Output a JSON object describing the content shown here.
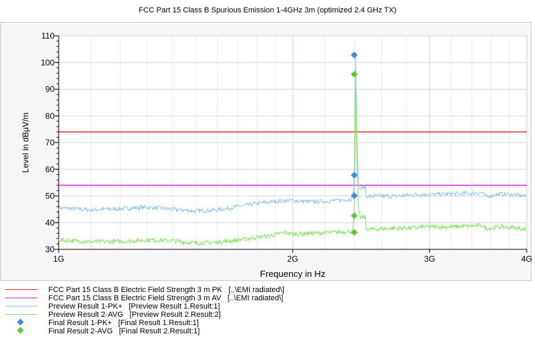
{
  "chart_data": {
    "type": "line",
    "title": "FCC Part 15 Class B Spurious Emission 1-4GHz 3m (optimized 2.4 GHz TX)",
    "xlabel": "Frequency in Hz",
    "ylabel": "Level in dBµV/m",
    "x_scale": "log",
    "xlim": [
      1000000000,
      4000000000
    ],
    "ylim": [
      30,
      110
    ],
    "x_ticks": [
      {
        "value": 1000000000,
        "label": "1G"
      },
      {
        "value": 2000000000,
        "label": "2G"
      },
      {
        "value": 3000000000,
        "label": "3G"
      },
      {
        "value": 4000000000,
        "label": "4G"
      }
    ],
    "y_ticks": [
      30,
      40,
      50,
      60,
      70,
      80,
      90,
      100,
      110
    ],
    "grid": true,
    "legend_position": "bottom",
    "series": [
      {
        "name": "FCC Part 15 Class B Electric Field Strength 3 m PK   [..\\EMI radiated\\]",
        "kind": "limit",
        "color": "#e8262b",
        "x": [
          1000000000,
          4000000000
        ],
        "y": [
          74,
          74
        ]
      },
      {
        "name": "FCC Part 15 Class B Electric Field Strength 3 m AV   [..\\EMI radiated\\]",
        "kind": "limit",
        "color": "#e020e0",
        "x": [
          1000000000,
          4000000000
        ],
        "y": [
          54,
          54
        ]
      },
      {
        "name": "Preview Result 1-PK+   [Preview Result 1.Result:1]",
        "kind": "trace",
        "color": "#8ec3ee",
        "x": [
          1000000000,
          1100000000,
          1200000000,
          1300000000,
          1400000000,
          1500000000,
          1600000000,
          1700000000,
          1800000000,
          1900000000,
          2000000000,
          2100000000,
          2200000000,
          2300000000,
          2380000000,
          2390000000,
          2400000000,
          2410000000,
          2420000000,
          2430000000,
          2440000000,
          2450000000,
          2480000000,
          2485000000,
          2500000000,
          2600000000,
          2700000000,
          2800000000,
          2900000000,
          3000000000,
          3200000000,
          3400000000,
          3500000000,
          3550000000,
          3700000000,
          3850000000,
          4000000000
        ],
        "y": [
          45.5,
          44.8,
          45.2,
          45.8,
          45,
          44.3,
          44.8,
          46,
          47.2,
          48,
          48.3,
          47.8,
          48,
          48.4,
          48.8,
          50,
          58,
          103,
          70,
          55,
          52.5,
          53,
          53.5,
          50,
          49.8,
          50,
          49.9,
          50.2,
          50.6,
          50.5,
          50.8,
          51,
          51.3,
          49.8,
          50.8,
          50.5,
          49.8
        ]
      },
      {
        "name": "Preview Result 2-AVG   [Preview Result 2.Result:2]",
        "kind": "trace",
        "color": "#7ee85a",
        "x": [
          1000000000,
          1100000000,
          1200000000,
          1300000000,
          1400000000,
          1500000000,
          1600000000,
          1700000000,
          1800000000,
          1900000000,
          1950000000,
          2000000000,
          2100000000,
          2200000000,
          2300000000,
          2380000000,
          2390000000,
          2400000000,
          2410000000,
          2420000000,
          2430000000,
          2440000000,
          2450000000,
          2480000000,
          2485000000,
          2500000000,
          2600000000,
          2700000000,
          2800000000,
          2900000000,
          3000000000,
          3200000000,
          3400000000,
          3500000000,
          3550000000,
          3700000000,
          3850000000,
          4000000000
        ],
        "y": [
          33.5,
          32.8,
          33,
          33.5,
          33.2,
          32.3,
          32.7,
          33.5,
          34.5,
          35.5,
          36.3,
          35.8,
          36,
          36.2,
          36.5,
          36.7,
          37,
          42.5,
          95.5,
          60,
          45,
          42,
          42,
          42,
          38,
          37.5,
          37.7,
          37.9,
          38,
          38.2,
          38.5,
          38.4,
          38.8,
          39,
          37.8,
          38.4,
          38.2,
          37.4
        ]
      },
      {
        "name": "Final Result 1-PK+   [Final Result 1.Result:1]",
        "kind": "points",
        "color": "#3a8fdc",
        "x": [
          2400000000,
          2400000000,
          2400000000
        ],
        "y": [
          102.8,
          57.8,
          50.1
        ]
      },
      {
        "name": "Final Result 2-AVG   [Final Result 2.Result:1]",
        "kind": "points",
        "color": "#5cc93a",
        "x": [
          2400000000,
          2400000000,
          2400000000
        ],
        "y": [
          95.6,
          42.6,
          36.4
        ]
      }
    ]
  }
}
